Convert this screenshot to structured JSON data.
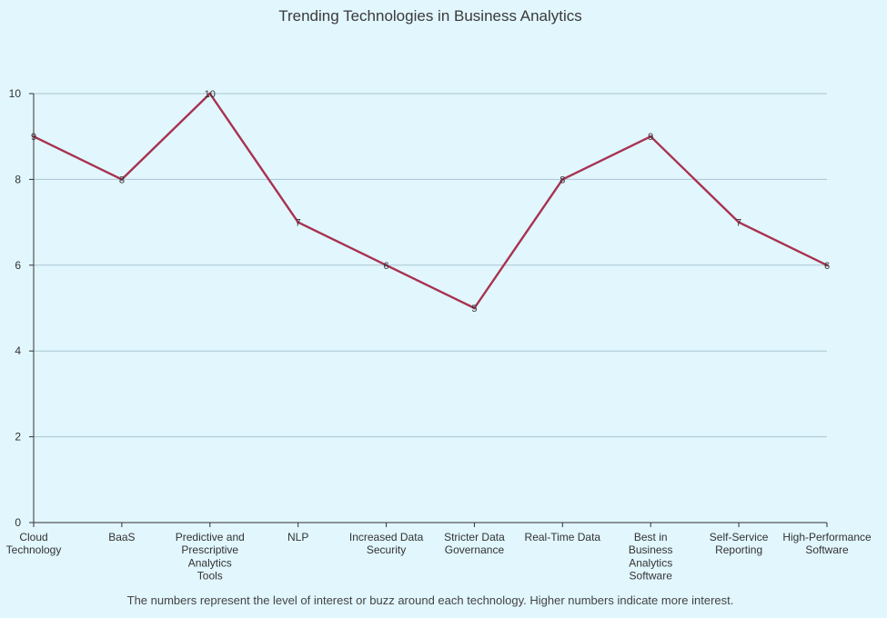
{
  "chart_data": {
    "type": "line",
    "title": "Trending Technologies in Business Analytics",
    "caption": "The numbers represent the level of interest or buzz around each technology. Higher numbers indicate more interest.",
    "xlabel": "",
    "ylabel": "",
    "categories": [
      [
        "Cloud",
        "Technology"
      ],
      [
        "BaaS"
      ],
      [
        "Predictive and",
        "Prescriptive",
        "Analytics",
        "Tools"
      ],
      [
        "NLP"
      ],
      [
        "Increased Data",
        "Security"
      ],
      [
        "Stricter Data",
        "Governance"
      ],
      [
        "Real-Time Data"
      ],
      [
        "Best in",
        "Business",
        "Analytics",
        "Software"
      ],
      [
        "Self-Service",
        "Reporting"
      ],
      [
        "High-Performance",
        "Software"
      ]
    ],
    "values": [
      9,
      8,
      10,
      7,
      6,
      5,
      8,
      9,
      7,
      6
    ],
    "ylim": [
      0,
      10
    ],
    "yticks": [
      0,
      2,
      4,
      6,
      8,
      10
    ],
    "grid": true,
    "legend": "none",
    "colors": {
      "line": "#a83250",
      "grid": "#a9c6d2",
      "axis": "#333333",
      "background": "#e1f6fd"
    }
  }
}
